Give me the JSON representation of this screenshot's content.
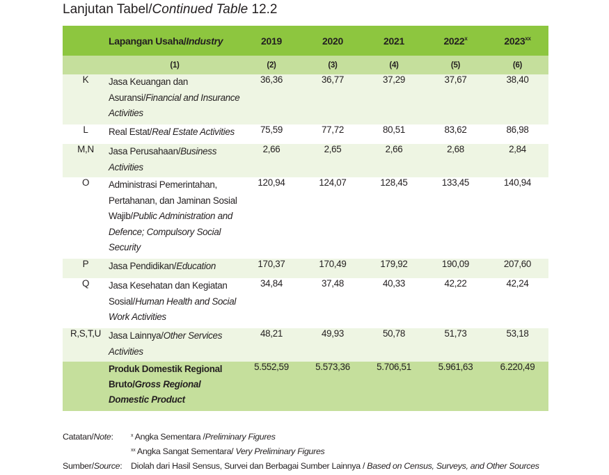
{
  "title": {
    "prefix": "Lanjutan Tabel/",
    "italic": "Continued Table",
    "number": " 12.2"
  },
  "header": {
    "industry_main": "Lapangan Usaha/",
    "industry_italic": "Industry",
    "years": [
      "2019",
      "2020",
      "2021",
      "2022",
      "2023"
    ],
    "year_marks": [
      "",
      "",
      "",
      "x",
      "xx"
    ]
  },
  "column_numbers": [
    "(1)",
    "(2)",
    "(3)",
    "(4)",
    "(5)",
    "(6)"
  ],
  "rows": [
    {
      "code": "K",
      "name_id": "Jasa Keuangan dan Asuransi/",
      "name_en": "Financial and Insurance Activities",
      "values": [
        "36,36",
        "36,77",
        "37,29",
        "37,67",
        "38,40"
      ]
    },
    {
      "code": "L",
      "name_id": "Real Estat/",
      "name_en": "Real Estate Activities",
      "values": [
        "75,59",
        "77,72",
        "80,51",
        "83,62",
        "86,98"
      ]
    },
    {
      "code": "M,N",
      "name_id": "Jasa Perusahaan/",
      "name_en": "Business Activities",
      "values": [
        "2,66",
        "2,65",
        "2,66",
        "2,68",
        "2,84"
      ]
    },
    {
      "code": "O",
      "name_id": "Administrasi Pemerintahan, Pertahanan, dan Jaminan Sosial Wajib/",
      "name_en": "Public Administration and Defence; Compulsory Social Security",
      "values": [
        "120,94",
        "124,07",
        "128,45",
        "133,45",
        "140,94"
      ]
    },
    {
      "code": "P",
      "name_id": "Jasa Pendidikan/",
      "name_en": "Education",
      "values": [
        "170,37",
        "170,49",
        "179,92",
        "190,09",
        "207,60"
      ]
    },
    {
      "code": "Q",
      "name_id": "Jasa Kesehatan dan Kegiatan Sosial/",
      "name_en": "Human Health and Social Work Activities",
      "values": [
        "34,84",
        "37,48",
        "40,33",
        "42,22",
        "42,24"
      ]
    },
    {
      "code": "R,S,T,U",
      "name_id": "Jasa Lainnya/",
      "name_en": "Other Services Activities",
      "values": [
        "48,21",
        "49,93",
        "50,78",
        "51,73",
        "53,18"
      ]
    }
  ],
  "total": {
    "name_id": "Produk Domestik  Regional Bruto/",
    "name_en": "Gross Regional Domestic Product",
    "values": [
      "5.552,59",
      "5.573,36",
      "5.706,51",
      "5.961,63",
      "6.220,49"
    ]
  },
  "notes": {
    "note_label": "Catatan/",
    "note_label_italic": "Note",
    "colon": ":",
    "mark1": "x",
    "note1_id": " Angka Sementara /",
    "note1_en": "Preliminary Figures",
    "mark2": "xx",
    "note2_id": " Angka Sangat Sementara/ ",
    "note2_en": "Very Preliminary Figures",
    "source_label": "Sumber/",
    "source_label_italic": "Source",
    "source_id": "Diolah dari Hasil Sensus, Survei dan Berbagai Sumber Lainnya / ",
    "source_en": "Based on Census, Surveys, and Other Sources"
  }
}
